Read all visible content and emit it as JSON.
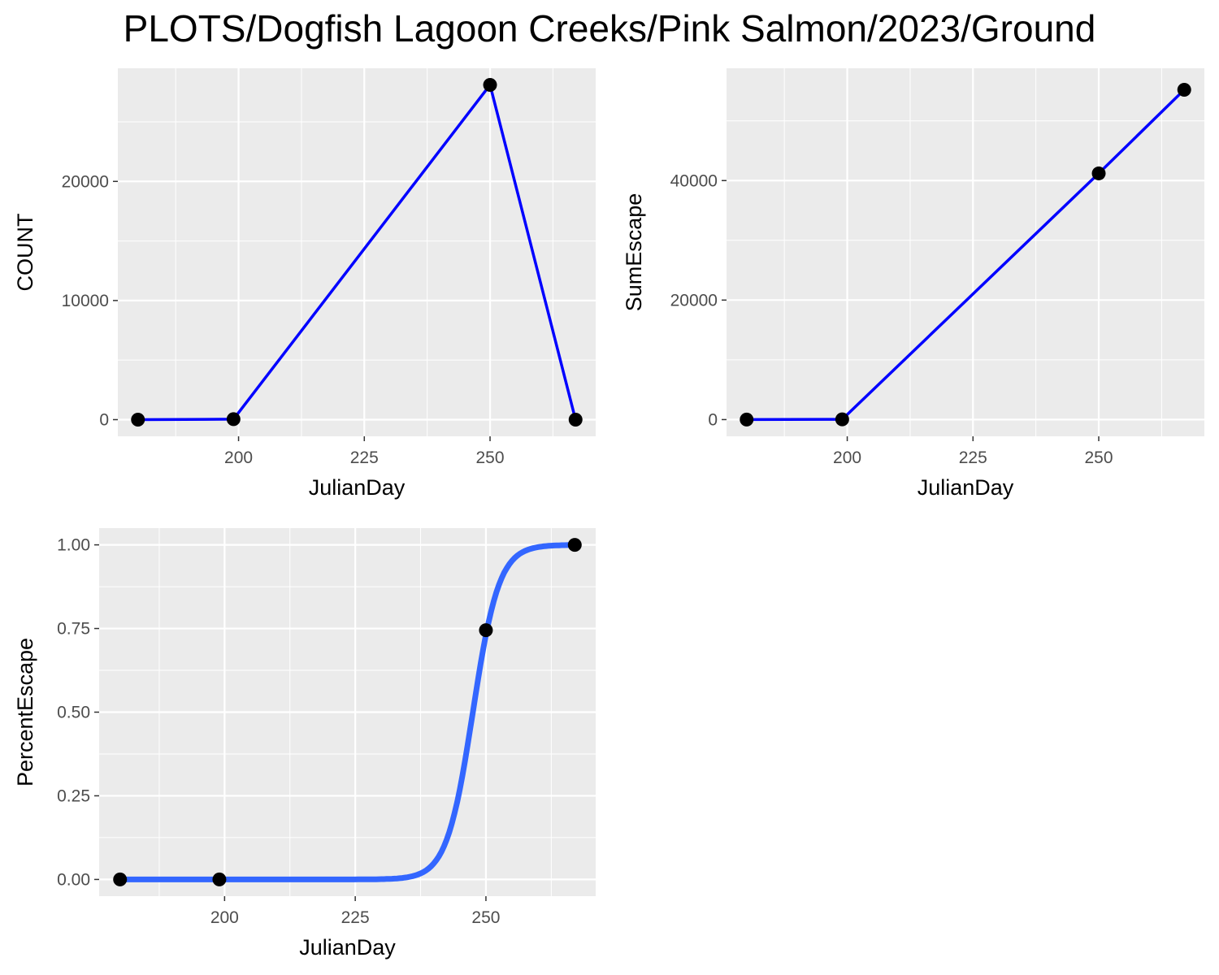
{
  "title": "PLOTS/Dogfish Lagoon Creeks/Pink Salmon/2023/Ground",
  "colors": {
    "panel_background": "#ebebeb",
    "grid": "#ffffff",
    "line": "#0000ff",
    "smooth_line": "#3366ff",
    "point": "#000000"
  },
  "chart_data": [
    {
      "type": "line",
      "title": "",
      "xlabel": "JulianDay",
      "ylabel": "COUNT",
      "xlim": [
        176,
        271
      ],
      "ylim": [
        -1400,
        29500
      ],
      "x_ticks": [
        200,
        225,
        250
      ],
      "y_ticks": [
        0,
        10000,
        20000
      ],
      "grid": true,
      "series": [
        {
          "x": [
            180,
            199,
            250,
            267
          ],
          "y": [
            0,
            40,
            28100,
            0
          ]
        }
      ]
    },
    {
      "type": "line",
      "title": "",
      "xlabel": "JulianDay",
      "ylabel": "SumEscape",
      "xlim": [
        176,
        271
      ],
      "ylim": [
        -2800,
        58800
      ],
      "x_ticks": [
        200,
        225,
        250
      ],
      "y_ticks": [
        0,
        20000,
        40000
      ],
      "grid": true,
      "series": [
        {
          "x": [
            180,
            199,
            250,
            267
          ],
          "y": [
            0,
            40,
            41200,
            55200
          ]
        }
      ]
    },
    {
      "type": "line",
      "title": "",
      "xlabel": "JulianDay",
      "ylabel": "PercentEscape",
      "xlim": [
        176,
        271
      ],
      "ylim": [
        -0.05,
        1.05
      ],
      "x_ticks": [
        200,
        225,
        250
      ],
      "y_ticks": [
        0,
        0.25,
        0.5,
        0.75,
        1
      ],
      "y_tick_labels": [
        "0.00",
        "0.25",
        "0.50",
        "0.75",
        "1.00"
      ],
      "grid": true,
      "points": {
        "x": [
          180,
          199,
          250,
          267
        ],
        "y": [
          0,
          0,
          0.745,
          1
        ]
      },
      "fit": {
        "kind": "logistic",
        "midpoint": 247.5,
        "scale": 2.5
      }
    }
  ]
}
